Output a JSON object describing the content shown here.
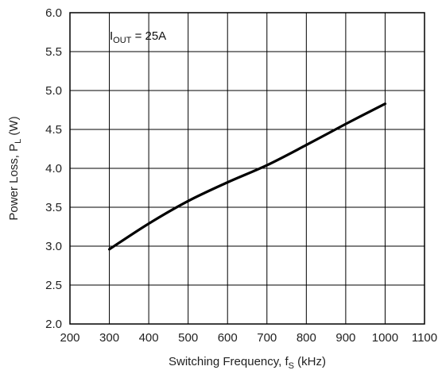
{
  "chart_data": {
    "type": "line",
    "xlabel": {
      "main": "Switching Frequency, f",
      "sub": "S",
      "unit": " (kHz)"
    },
    "ylabel": {
      "main": "Power Loss, P",
      "sub": "L",
      "unit": " (W)"
    },
    "xlim": [
      200,
      1100
    ],
    "ylim": [
      2.0,
      6.0
    ],
    "xticks": [
      "200",
      "300",
      "400",
      "500",
      "600",
      "700",
      "800",
      "900",
      "1000",
      "1100"
    ],
    "yticks": [
      "2.0",
      "2.5",
      "3.0",
      "3.5",
      "4.0",
      "4.5",
      "5.0",
      "5.5",
      "6.0"
    ],
    "grid": true,
    "annotation": {
      "main": "I",
      "sub": "OUT",
      "rest": " = 25A"
    },
    "series": [
      {
        "color": "#000000",
        "x": [
          300,
          400,
          500,
          600,
          700,
          800,
          900,
          1000
        ],
        "y": [
          2.96,
          3.29,
          3.58,
          3.82,
          4.04,
          4.3,
          4.57,
          4.83
        ]
      }
    ]
  }
}
